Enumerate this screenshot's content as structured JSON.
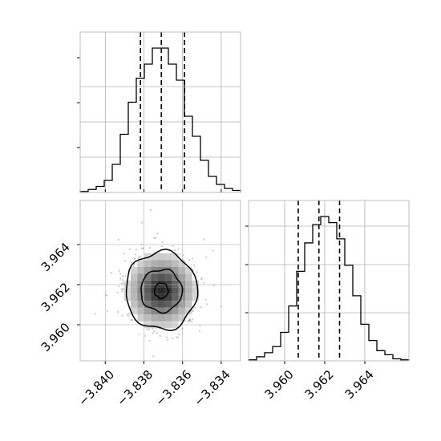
{
  "chart_data": [
    {
      "type": "histogram",
      "panel": "top-left marginal",
      "x_range": [
        -3.8413,
        -3.833
      ],
      "bin_edges_start": -3.8413,
      "bin_width": 0.000415,
      "counts": [
        0.5,
        1.5,
        3,
        6,
        14,
        29,
        45,
        57,
        64,
        72,
        72,
        64,
        56,
        38,
        28,
        16,
        8,
        4,
        2,
        1
      ],
      "quantile_lines": [
        -3.83818,
        -3.8371,
        -3.8359
      ],
      "ticks": [
        -3.84,
        -3.838,
        -3.836,
        -3.834
      ],
      "grid": true
    },
    {
      "type": "density-contour",
      "panel": "bottom-left joint",
      "x_range": [
        -3.8413,
        -3.833
      ],
      "y_range": [
        3.9582,
        3.9662
      ],
      "x_ticks": [
        -3.84,
        -3.838,
        -3.836,
        -3.834
      ],
      "x_tick_labels": [
        "−3.840",
        "−3.838",
        "−3.836",
        "−3.834"
      ],
      "y_ticks": [
        3.96,
        3.962,
        3.964
      ],
      "y_tick_labels": [
        "3.960",
        "3.962",
        "3.964"
      ],
      "center": [
        -3.8371,
        3.9617
      ],
      "contour_half_widths_x": [
        0.00035,
        0.00107,
        0.00185
      ],
      "contour_half_widths_y": [
        0.00038,
        0.00106,
        0.00195
      ],
      "grid": true
    },
    {
      "type": "histogram",
      "panel": "bottom-right marginal",
      "x_range": [
        3.9582,
        3.9662
      ],
      "bin_edges_start": 3.9582,
      "bin_width": 0.0004,
      "counts": [
        0.5,
        2,
        4,
        7,
        14,
        27,
        44,
        58,
        67,
        71,
        68,
        60,
        47,
        32,
        18,
        10,
        5,
        3,
        1,
        0.5
      ],
      "quantile_lines": [
        3.96068,
        3.96171,
        3.96274
      ],
      "ticks": [
        3.96,
        3.962,
        3.964
      ],
      "tick_labels": [
        "3.960",
        "3.962",
        "3.964"
      ],
      "grid": true
    }
  ],
  "style": {
    "line_color": "#000000",
    "grid_color": "#b0b0b0",
    "frame_color": "#bcbcbc"
  }
}
